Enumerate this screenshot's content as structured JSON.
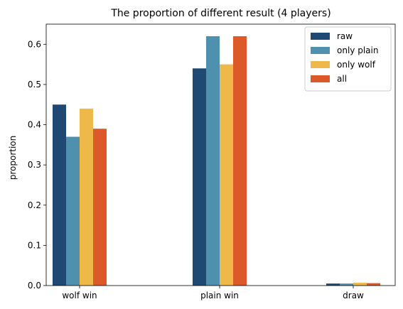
{
  "chart_data": {
    "type": "bar",
    "title": "The proportion of different result (4 players)",
    "xlabel": "",
    "ylabel": "proportion",
    "categories": [
      "wolf win",
      "plain win",
      "draw"
    ],
    "ylim": [
      0,
      0.65
    ],
    "yticks": [
      "0.0",
      "0.1",
      "0.2",
      "0.3",
      "0.4",
      "0.5",
      "0.6"
    ],
    "grid": false,
    "legend_position": "top-right",
    "series": [
      {
        "name": "raw",
        "color": "#1f4872",
        "values": [
          0.45,
          0.54,
          0.005
        ]
      },
      {
        "name": "only plain",
        "color": "#4f90ae",
        "values": [
          0.37,
          0.62,
          0.005
        ]
      },
      {
        "name": "only wolf",
        "color": "#efb949",
        "values": [
          0.44,
          0.55,
          0.007
        ]
      },
      {
        "name": "all",
        "color": "#dc5a2a",
        "values": [
          0.39,
          0.62,
          0.006
        ]
      }
    ]
  }
}
